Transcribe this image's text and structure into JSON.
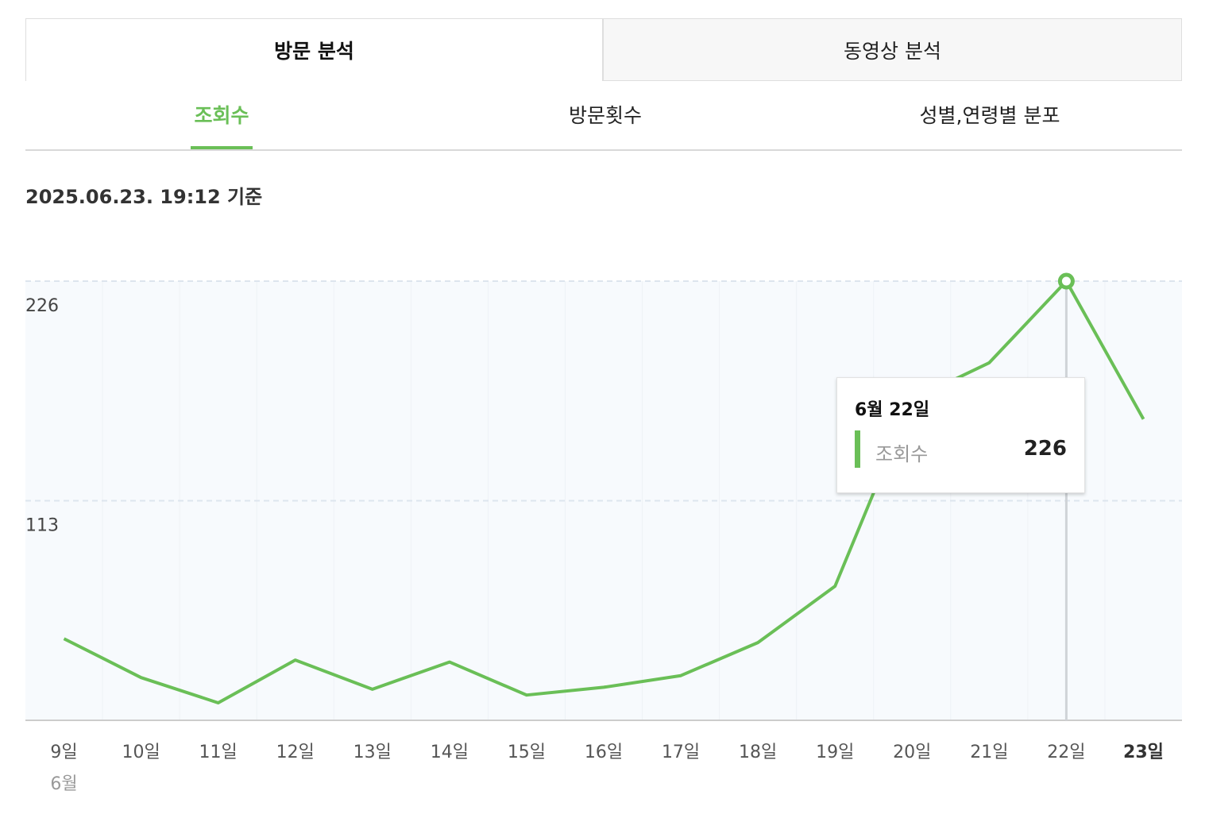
{
  "main_tabs": [
    {
      "label": "방문 분석",
      "active": true
    },
    {
      "label": "동영상 분석",
      "active": false
    }
  ],
  "sub_tabs": [
    {
      "label": "조회수",
      "active": true
    },
    {
      "label": "방문횟수",
      "active": false
    },
    {
      "label": "성별,연령별 분포",
      "active": false
    }
  ],
  "timestamp": "2025.06.23. 19:12 기준",
  "colors": {
    "accent": "#6abf57"
  },
  "chart_data": {
    "type": "line",
    "categories": [
      "9일",
      "10일",
      "11일",
      "12일",
      "13일",
      "14일",
      "15일",
      "16일",
      "17일",
      "18일",
      "19일",
      "20일",
      "21일",
      "22일",
      "23일"
    ],
    "month_label": "6월",
    "highlight_category": "23일",
    "series": [
      {
        "name": "조회수",
        "values": [
          42,
          22,
          9,
          31,
          16,
          30,
          13,
          17,
          23,
          40,
          69,
          165,
          184,
          226,
          155
        ]
      }
    ],
    "yticks": [
      226,
      113
    ],
    "ylim": [
      0,
      226
    ],
    "grid": true
  },
  "tooltip": {
    "date": "6월 22일",
    "label": "조회수",
    "value": "226"
  }
}
